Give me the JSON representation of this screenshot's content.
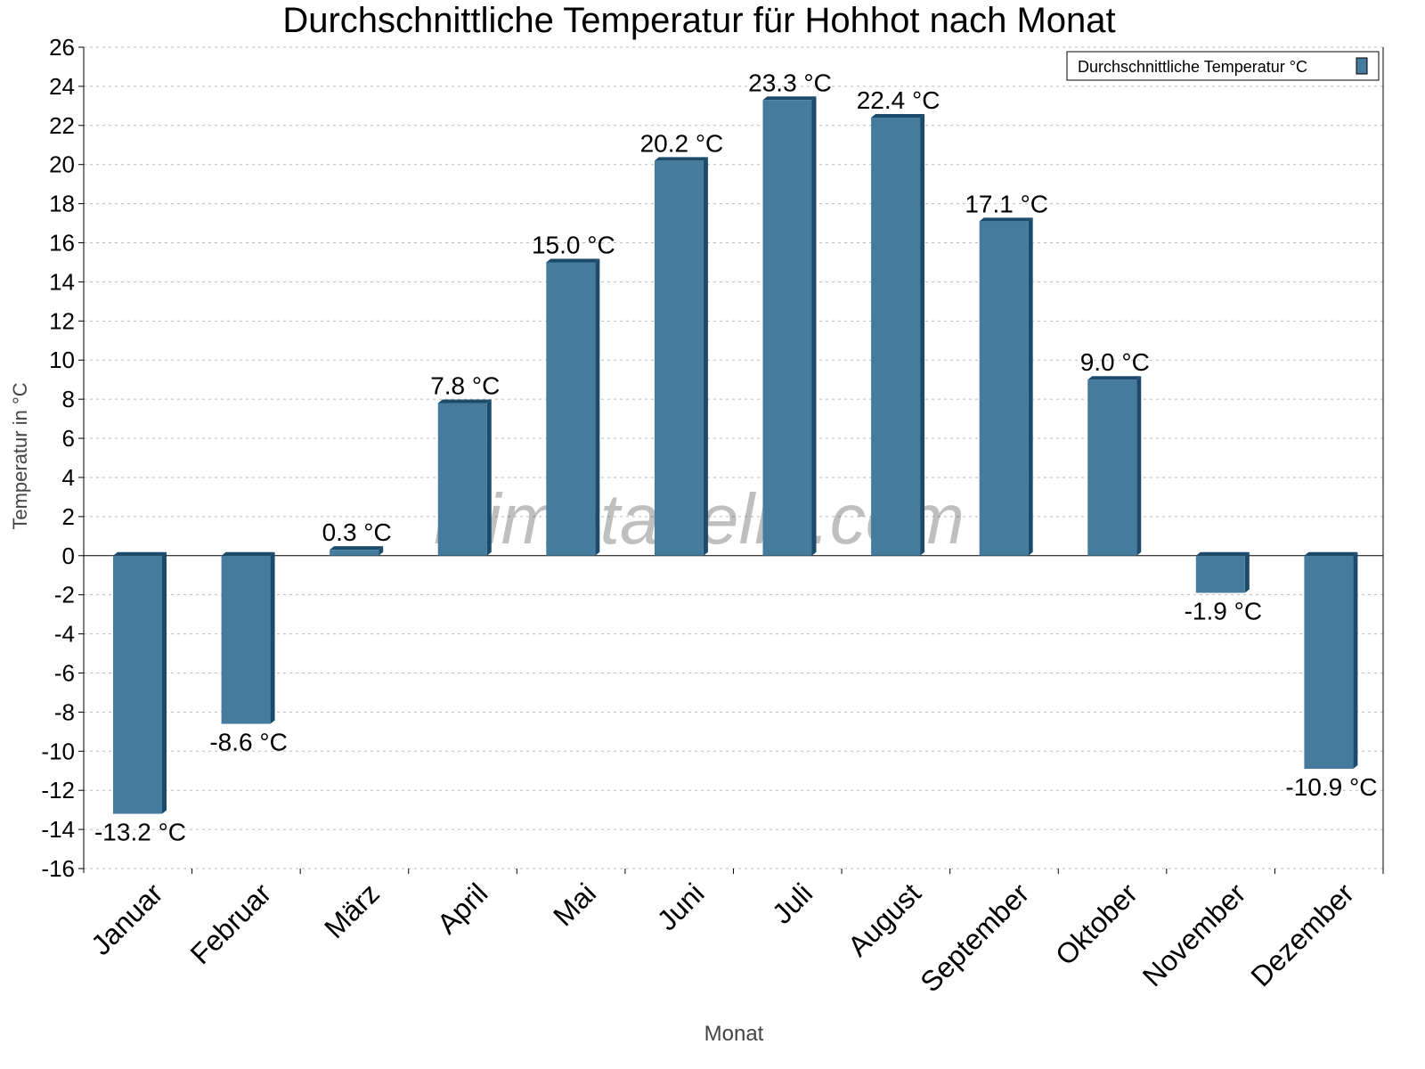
{
  "chart_data": {
    "type": "bar",
    "title": "Durchschnittliche Temperatur für Hohhot nach Monat",
    "xlabel": "Monat",
    "ylabel": "Temperatur in °C",
    "categories": [
      "Januar",
      "Februar",
      "März",
      "April",
      "Mai",
      "Juni",
      "Juli",
      "August",
      "September",
      "Oktober",
      "November",
      "Dezember"
    ],
    "series": [
      {
        "name": "Durchschnittliche Temperatur °C",
        "values": [
          -13.2,
          -8.6,
          0.3,
          7.8,
          15.0,
          20.2,
          23.3,
          22.4,
          17.1,
          9.0,
          -1.9,
          -10.9
        ]
      }
    ],
    "data_labels": [
      "-13.2 °C",
      "-8.6 °C",
      "0.3 °C",
      "7.8 °C",
      "15.0 °C",
      "20.2 °C",
      "23.3 °C",
      "22.4 °C",
      "17.1 °C",
      "9.0 °C",
      "-1.9 °C",
      "-10.9 °C"
    ],
    "ylim": [
      -16,
      26
    ],
    "yticks": [
      -16,
      -14,
      -12,
      -10,
      -8,
      -6,
      -4,
      -2,
      0,
      2,
      4,
      6,
      8,
      10,
      12,
      14,
      16,
      18,
      20,
      22,
      24,
      26
    ],
    "grid": true,
    "legend_position": "top-right",
    "watermark": "klimatabelle.com",
    "colors": {
      "bar": "#457b9d",
      "bar_dark": "#1b4a6b"
    }
  }
}
